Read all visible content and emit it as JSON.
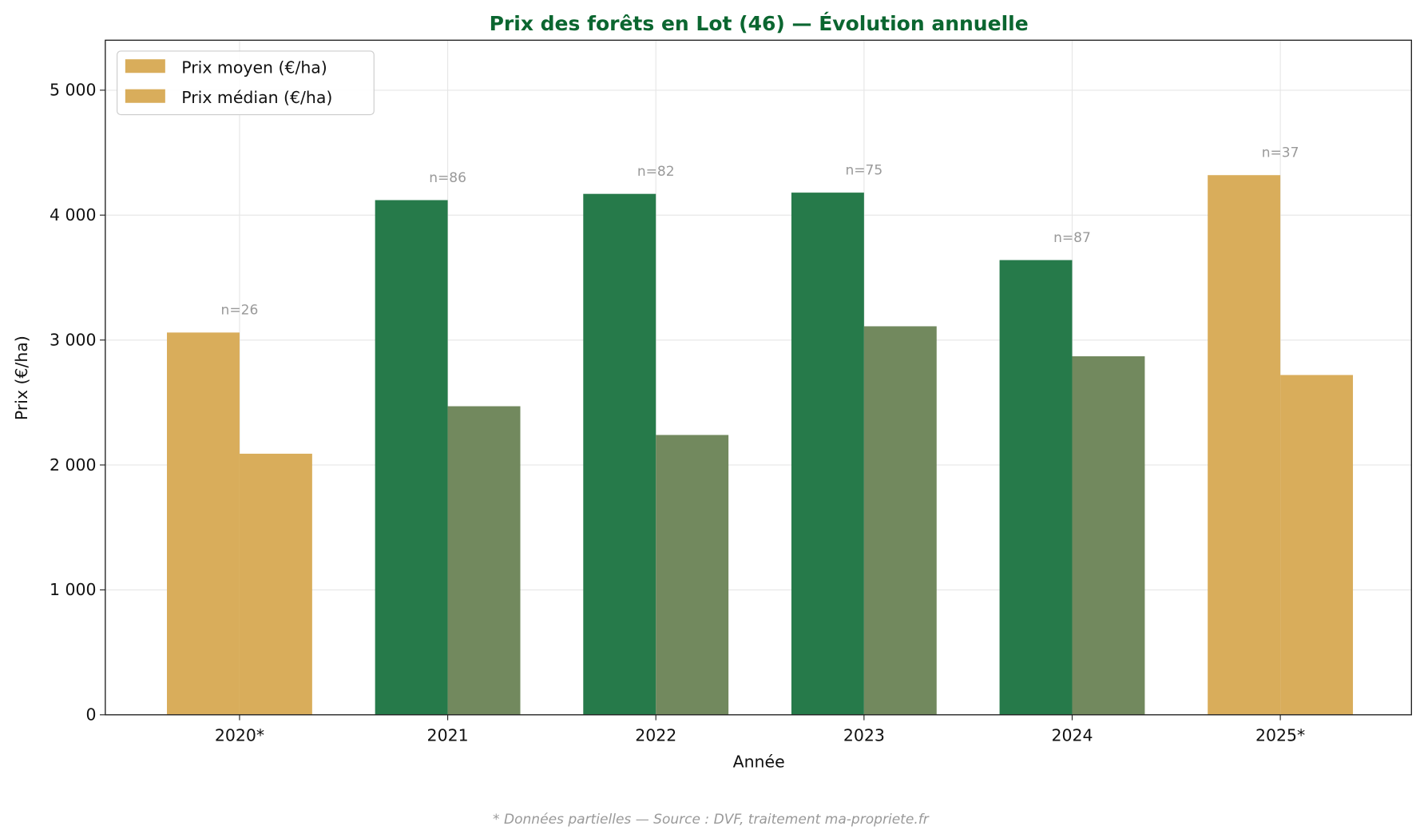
{
  "chart_data": {
    "type": "bar",
    "title": "Prix des forêts en Lot (46) — Évolution annuelle",
    "xlabel": "Année",
    "ylabel": "Prix (€/ha)",
    "ylim": [
      0,
      5400
    ],
    "yticks": [
      0,
      1000,
      2000,
      3000,
      4000,
      5000
    ],
    "ytick_labels": [
      "0",
      "1 000",
      "2 000",
      "3 000",
      "4 000",
      "5 000"
    ],
    "grid": true,
    "legend_position": "top-left",
    "categories": [
      "2020*",
      "2021",
      "2022",
      "2023",
      "2024",
      "2025*"
    ],
    "partial": [
      true,
      false,
      false,
      false,
      false,
      true
    ],
    "series": [
      {
        "name": "Prix moyen (€/ha)",
        "values": [
          3060,
          4120,
          4170,
          4180,
          3640,
          4320
        ]
      },
      {
        "name": "Prix médian (€/ha)",
        "values": [
          2090,
          2470,
          2240,
          3110,
          2870,
          2720
        ]
      }
    ],
    "annotations": [
      "n=26",
      "n=86",
      "n=82",
      "n=75",
      "n=87",
      "n=37"
    ],
    "colors": {
      "mean": "#267a4a",
      "median": "#72895e",
      "partial": "#d9ad5b",
      "title": "#0b6630"
    },
    "footnote": "* Données partielles — Source : DVF, traitement ma-propriete.fr"
  }
}
